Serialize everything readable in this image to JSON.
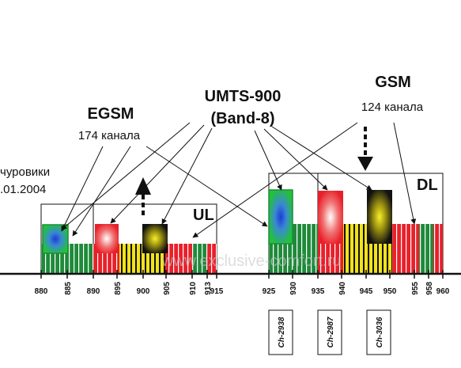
{
  "labels": {
    "egsm_title": "EGSM",
    "egsm_sub": "174 канала",
    "umts_title": "UMTS-900",
    "umts_sub": "(Band-8)",
    "gsm_title": "GSM",
    "gsm_sub": "124 канала",
    "left_line1": "чуровики",
    "left_line2": ".01.2004",
    "ul": "UL",
    "dl": "DL",
    "watermark": "www.exclusive-comfort.ru"
  },
  "axis": {
    "left_ticks": [
      "880",
      "885",
      "890",
      "895",
      "900",
      "905",
      "910",
      "913",
      "915"
    ],
    "right_ticks": [
      "925",
      "930",
      "935",
      "940",
      "945",
      "950",
      "955",
      "958",
      "960"
    ]
  },
  "operators": [
    "Ch-2938",
    "Ch-2987",
    "Ch-3036"
  ],
  "colors": {
    "green": "#1f8a3a",
    "red": "#e8202a",
    "yellow": "#f2e21a",
    "black": "#111111",
    "blue": "#1e3cd8"
  },
  "icons": [
    "arrow-icon",
    "dashed-arrow-icon"
  ]
}
